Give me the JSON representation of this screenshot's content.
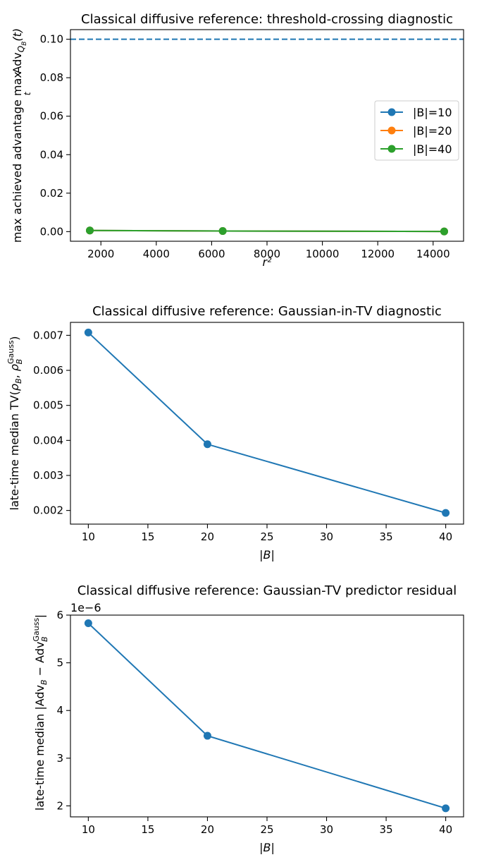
{
  "chart_data": [
    {
      "type": "line",
      "title": "Classical diffusive reference: threshold-crossing diagnostic",
      "xlabel": "r²",
      "ylabel": "max achieved advantage max_t Adv_{Q_B}(t)",
      "ylabel_parts": {
        "main": "max achieved advantage max",
        "sub_t": "t",
        "adv": "Adv",
        "q": "Q",
        "qsub": "B",
        "tail": "(t)"
      },
      "xlim": [
        900,
        15100
      ],
      "ylim": [
        -0.005,
        0.105
      ],
      "xticks": [
        2000,
        4000,
        6000,
        8000,
        10000,
        12000,
        14000
      ],
      "xtick_labels": [
        "2000",
        "4000",
        "6000",
        "8000",
        "10000",
        "12000",
        "14000"
      ],
      "yticks": [
        0.0,
        0.02,
        0.04,
        0.06,
        0.08,
        0.1
      ],
      "ytick_labels": [
        "0.00",
        "0.02",
        "0.04",
        "0.06",
        "0.08",
        "0.10"
      ],
      "threshold": 0.1,
      "threshold_color": "#1f77b4",
      "grid": false,
      "legend_position": "right",
      "series": [
        {
          "name": "|B|=10",
          "color": "#1f77b4",
          "x": [
            1600,
            6400,
            14400
          ],
          "y": [
            0.0006,
            0.0003,
            0.0001
          ]
        },
        {
          "name": "|B|=20",
          "color": "#ff7f0e",
          "x": [
            1600,
            6400,
            14400
          ],
          "y": [
            0.0006,
            0.0003,
            0.0001
          ]
        },
        {
          "name": "|B|=40",
          "color": "#2ca02c",
          "x": [
            1600,
            6400,
            14400
          ],
          "y": [
            0.0006,
            0.0003,
            0.0001
          ]
        }
      ]
    },
    {
      "type": "line",
      "title": "Classical diffusive reference: Gaussian-in-TV diagnostic",
      "xlabel": "|B|",
      "ylabel": "late-time median TV(ρ_B, ρ_B^Gauss)",
      "ylabel_parts": {
        "main": "late-time median TV(",
        "rho": "ρ",
        "sub": "B",
        "sep": ", ",
        "sup": "Gauss",
        "tail": ")"
      },
      "xlim": [
        8.5,
        41.5
      ],
      "ylim": [
        0.00161,
        0.00737
      ],
      "xticks": [
        10,
        15,
        20,
        25,
        30,
        35,
        40
      ],
      "xtick_labels": [
        "10",
        "15",
        "20",
        "25",
        "30",
        "35",
        "40"
      ],
      "yticks": [
        0.002,
        0.003,
        0.004,
        0.005,
        0.006,
        0.007
      ],
      "ytick_labels": [
        "0.002",
        "0.003",
        "0.004",
        "0.005",
        "0.006",
        "0.007"
      ],
      "grid": false,
      "series": [
        {
          "color": "#1f77b4",
          "x": [
            10,
            20,
            40
          ],
          "y": [
            0.00708,
            0.00389,
            0.00193
          ]
        }
      ]
    },
    {
      "type": "line",
      "title": "Classical diffusive reference: Gaussian-TV predictor residual",
      "xlabel": "|B|",
      "ylabel": "late-time median |Adv_B − Adv_B^Gauss|",
      "ylabel_parts": {
        "main": "late-time median |Adv",
        "sub1": "B",
        "minus": " − Adv",
        "sub2": "B",
        "sup": "Gauss",
        "tail": "|"
      },
      "offset_label": "1e−6",
      "xlim": [
        8.5,
        41.5
      ],
      "ylim": [
        1.77,
        6.0
      ],
      "xticks": [
        10,
        15,
        20,
        25,
        30,
        35,
        40
      ],
      "xtick_labels": [
        "10",
        "15",
        "20",
        "25",
        "30",
        "35",
        "40"
      ],
      "yticks": [
        2,
        3,
        4,
        5,
        6
      ],
      "ytick_labels": [
        "2",
        "3",
        "4",
        "5",
        "6"
      ],
      "grid": false,
      "series": [
        {
          "color": "#1f77b4",
          "x": [
            10,
            20,
            40
          ],
          "y": [
            5.83,
            3.47,
            1.95
          ]
        }
      ]
    }
  ]
}
